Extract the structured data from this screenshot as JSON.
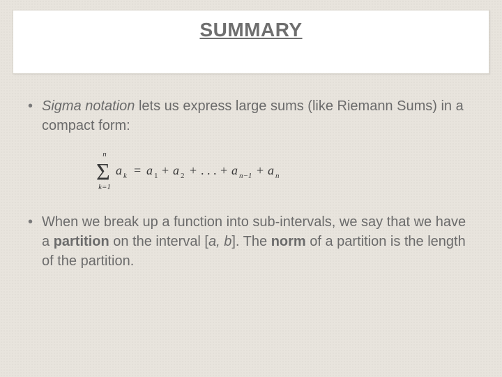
{
  "slide": {
    "title": "SUMMARY",
    "background_color": "#e8e4dd",
    "title_box": {
      "background": "#ffffff",
      "border_color": "#d8d4cc",
      "title_fontsize": 28,
      "title_color": "#6e6e6e",
      "underline": true,
      "bold": true
    },
    "body_text_color": "#6b6b6b",
    "body_fontsize": 20,
    "bullets": [
      {
        "runs": [
          {
            "text": "Sigma notation",
            "italic": true
          },
          {
            "text": " lets us express large sums (like Riemann Sums) in a compact form:"
          }
        ]
      },
      {
        "runs": [
          {
            "text": "When we break up a function into sub-intervals, we say that we have a "
          },
          {
            "text": "partition",
            "bold": true
          },
          {
            "text": " on the interval ["
          },
          {
            "text": "a, b",
            "italic": true
          },
          {
            "text": "]. The "
          },
          {
            "text": "norm",
            "bold": true
          },
          {
            "text": " of a partition is the length of the partition."
          }
        ]
      }
    ],
    "formula": {
      "type": "math",
      "latex": "\\sum_{k=1}^{n} a_k = a_1 + a_2 + \\ldots + a_{n-1} + a_n",
      "sigma_upper": "n",
      "sigma_lower": "k=1",
      "summand": "a_k",
      "rhs_terms": [
        "a_1",
        "a_2",
        "...",
        "a_{n-1}",
        "a_n"
      ],
      "text_color": "#3a3a3a",
      "fontsize": 18,
      "font_style": "italic-serif"
    }
  }
}
